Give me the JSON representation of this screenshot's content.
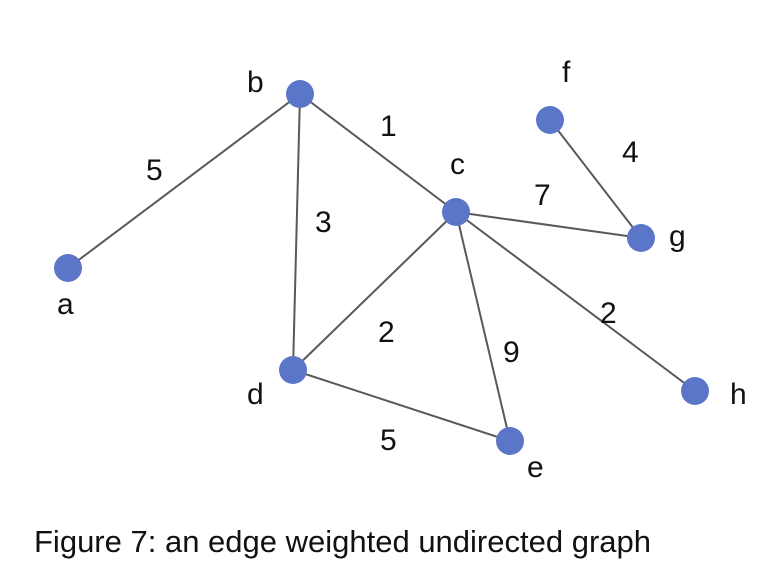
{
  "figure": {
    "caption": "Figure 7: an edge weighted undirected graph"
  },
  "graph": {
    "node_color": "#5b75c9",
    "edge_color": "#595959",
    "nodes": [
      {
        "id": "a",
        "label": "a"
      },
      {
        "id": "b",
        "label": "b"
      },
      {
        "id": "c",
        "label": "c"
      },
      {
        "id": "d",
        "label": "d"
      },
      {
        "id": "e",
        "label": "e"
      },
      {
        "id": "f",
        "label": "f"
      },
      {
        "id": "g",
        "label": "g"
      },
      {
        "id": "h",
        "label": "h"
      }
    ],
    "edges": [
      {
        "from": "a",
        "to": "b",
        "weight": "5"
      },
      {
        "from": "b",
        "to": "c",
        "weight": "1"
      },
      {
        "from": "b",
        "to": "d",
        "weight": "3"
      },
      {
        "from": "c",
        "to": "d",
        "weight": "2"
      },
      {
        "from": "c",
        "to": "e",
        "weight": "9"
      },
      {
        "from": "c",
        "to": "g",
        "weight": "7"
      },
      {
        "from": "c",
        "to": "h",
        "weight": "2"
      },
      {
        "from": "d",
        "to": "e",
        "weight": "5"
      },
      {
        "from": "f",
        "to": "g",
        "weight": "4"
      }
    ]
  }
}
